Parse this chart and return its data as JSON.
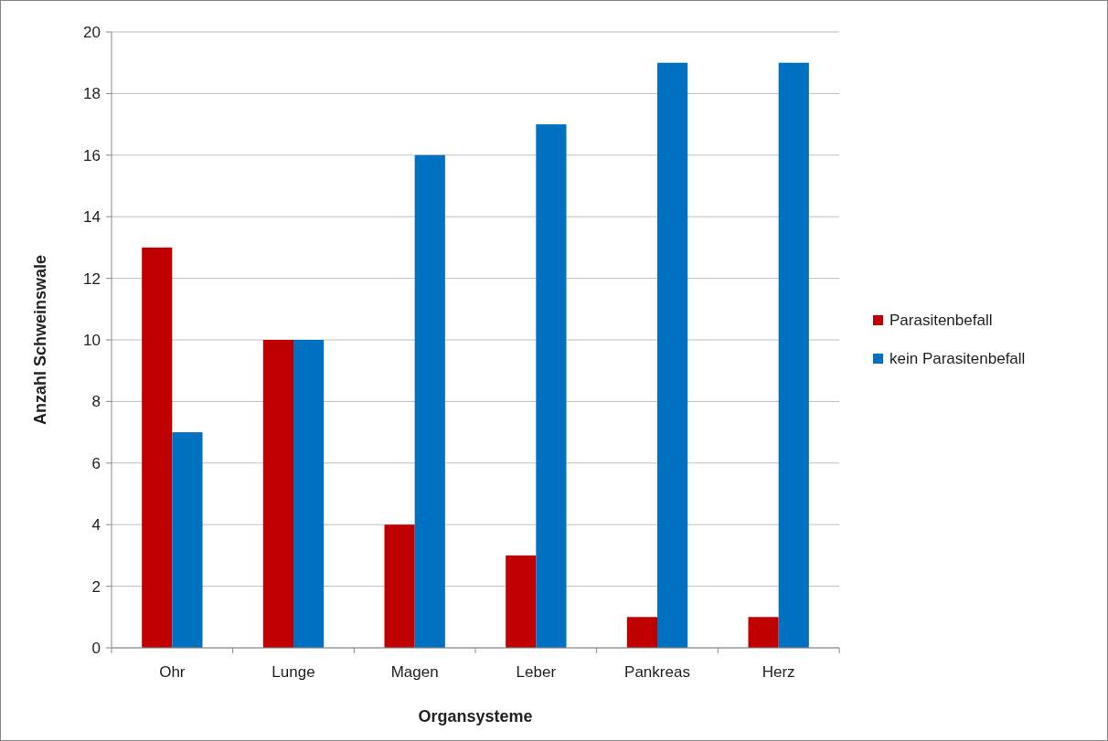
{
  "chart_data": {
    "type": "bar",
    "xlabel": "Organsysteme",
    "ylabel": "Anzahl Schweinswale",
    "categories": [
      "Ohr",
      "Lunge",
      "Magen",
      "Leber",
      "Pankreas",
      "Herz"
    ],
    "series": [
      {
        "name": "Parasitenbefall",
        "color": "#c00000",
        "values": [
          13,
          10,
          4,
          3,
          1,
          1
        ]
      },
      {
        "name": "kein Parasitenbefall",
        "color": "#0070c0",
        "values": [
          7,
          10,
          16,
          17,
          19,
          19
        ]
      }
    ],
    "ylim": [
      0,
      20
    ],
    "yticks": [
      0,
      2,
      4,
      6,
      8,
      10,
      12,
      14,
      16,
      18,
      20
    ],
    "grid": "y",
    "legend": "right"
  }
}
